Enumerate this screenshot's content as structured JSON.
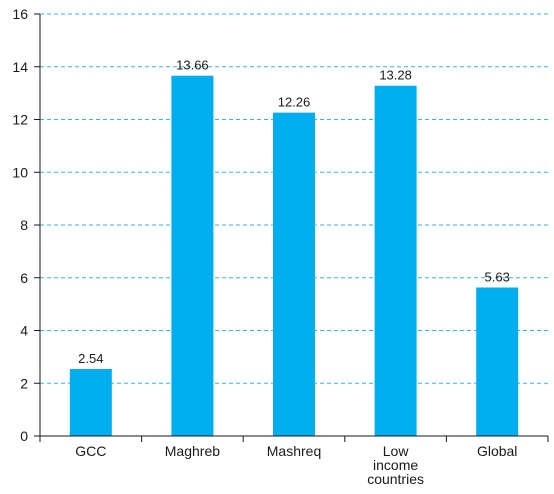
{
  "chart_data": {
    "type": "bar",
    "categories": [
      [
        "GCC"
      ],
      [
        "Maghreb"
      ],
      [
        "Mashreq"
      ],
      [
        "Low",
        "income",
        "countries"
      ],
      [
        "Global"
      ]
    ],
    "values": [
      2.54,
      13.66,
      12.26,
      13.28,
      5.63
    ],
    "value_labels": [
      "2.54",
      "13.66",
      "12.26",
      "13.28",
      "5.63"
    ],
    "title": "",
    "xlabel": "",
    "ylabel": "",
    "ylim": [
      0,
      16
    ],
    "yticks": [
      "0",
      "2",
      "4",
      "6",
      "8",
      "10",
      "12",
      "14",
      "16"
    ],
    "grid": true,
    "colors": {
      "bar": "#00aeef",
      "grid": "#33b5e5",
      "axis": "#1a1a1a"
    }
  }
}
